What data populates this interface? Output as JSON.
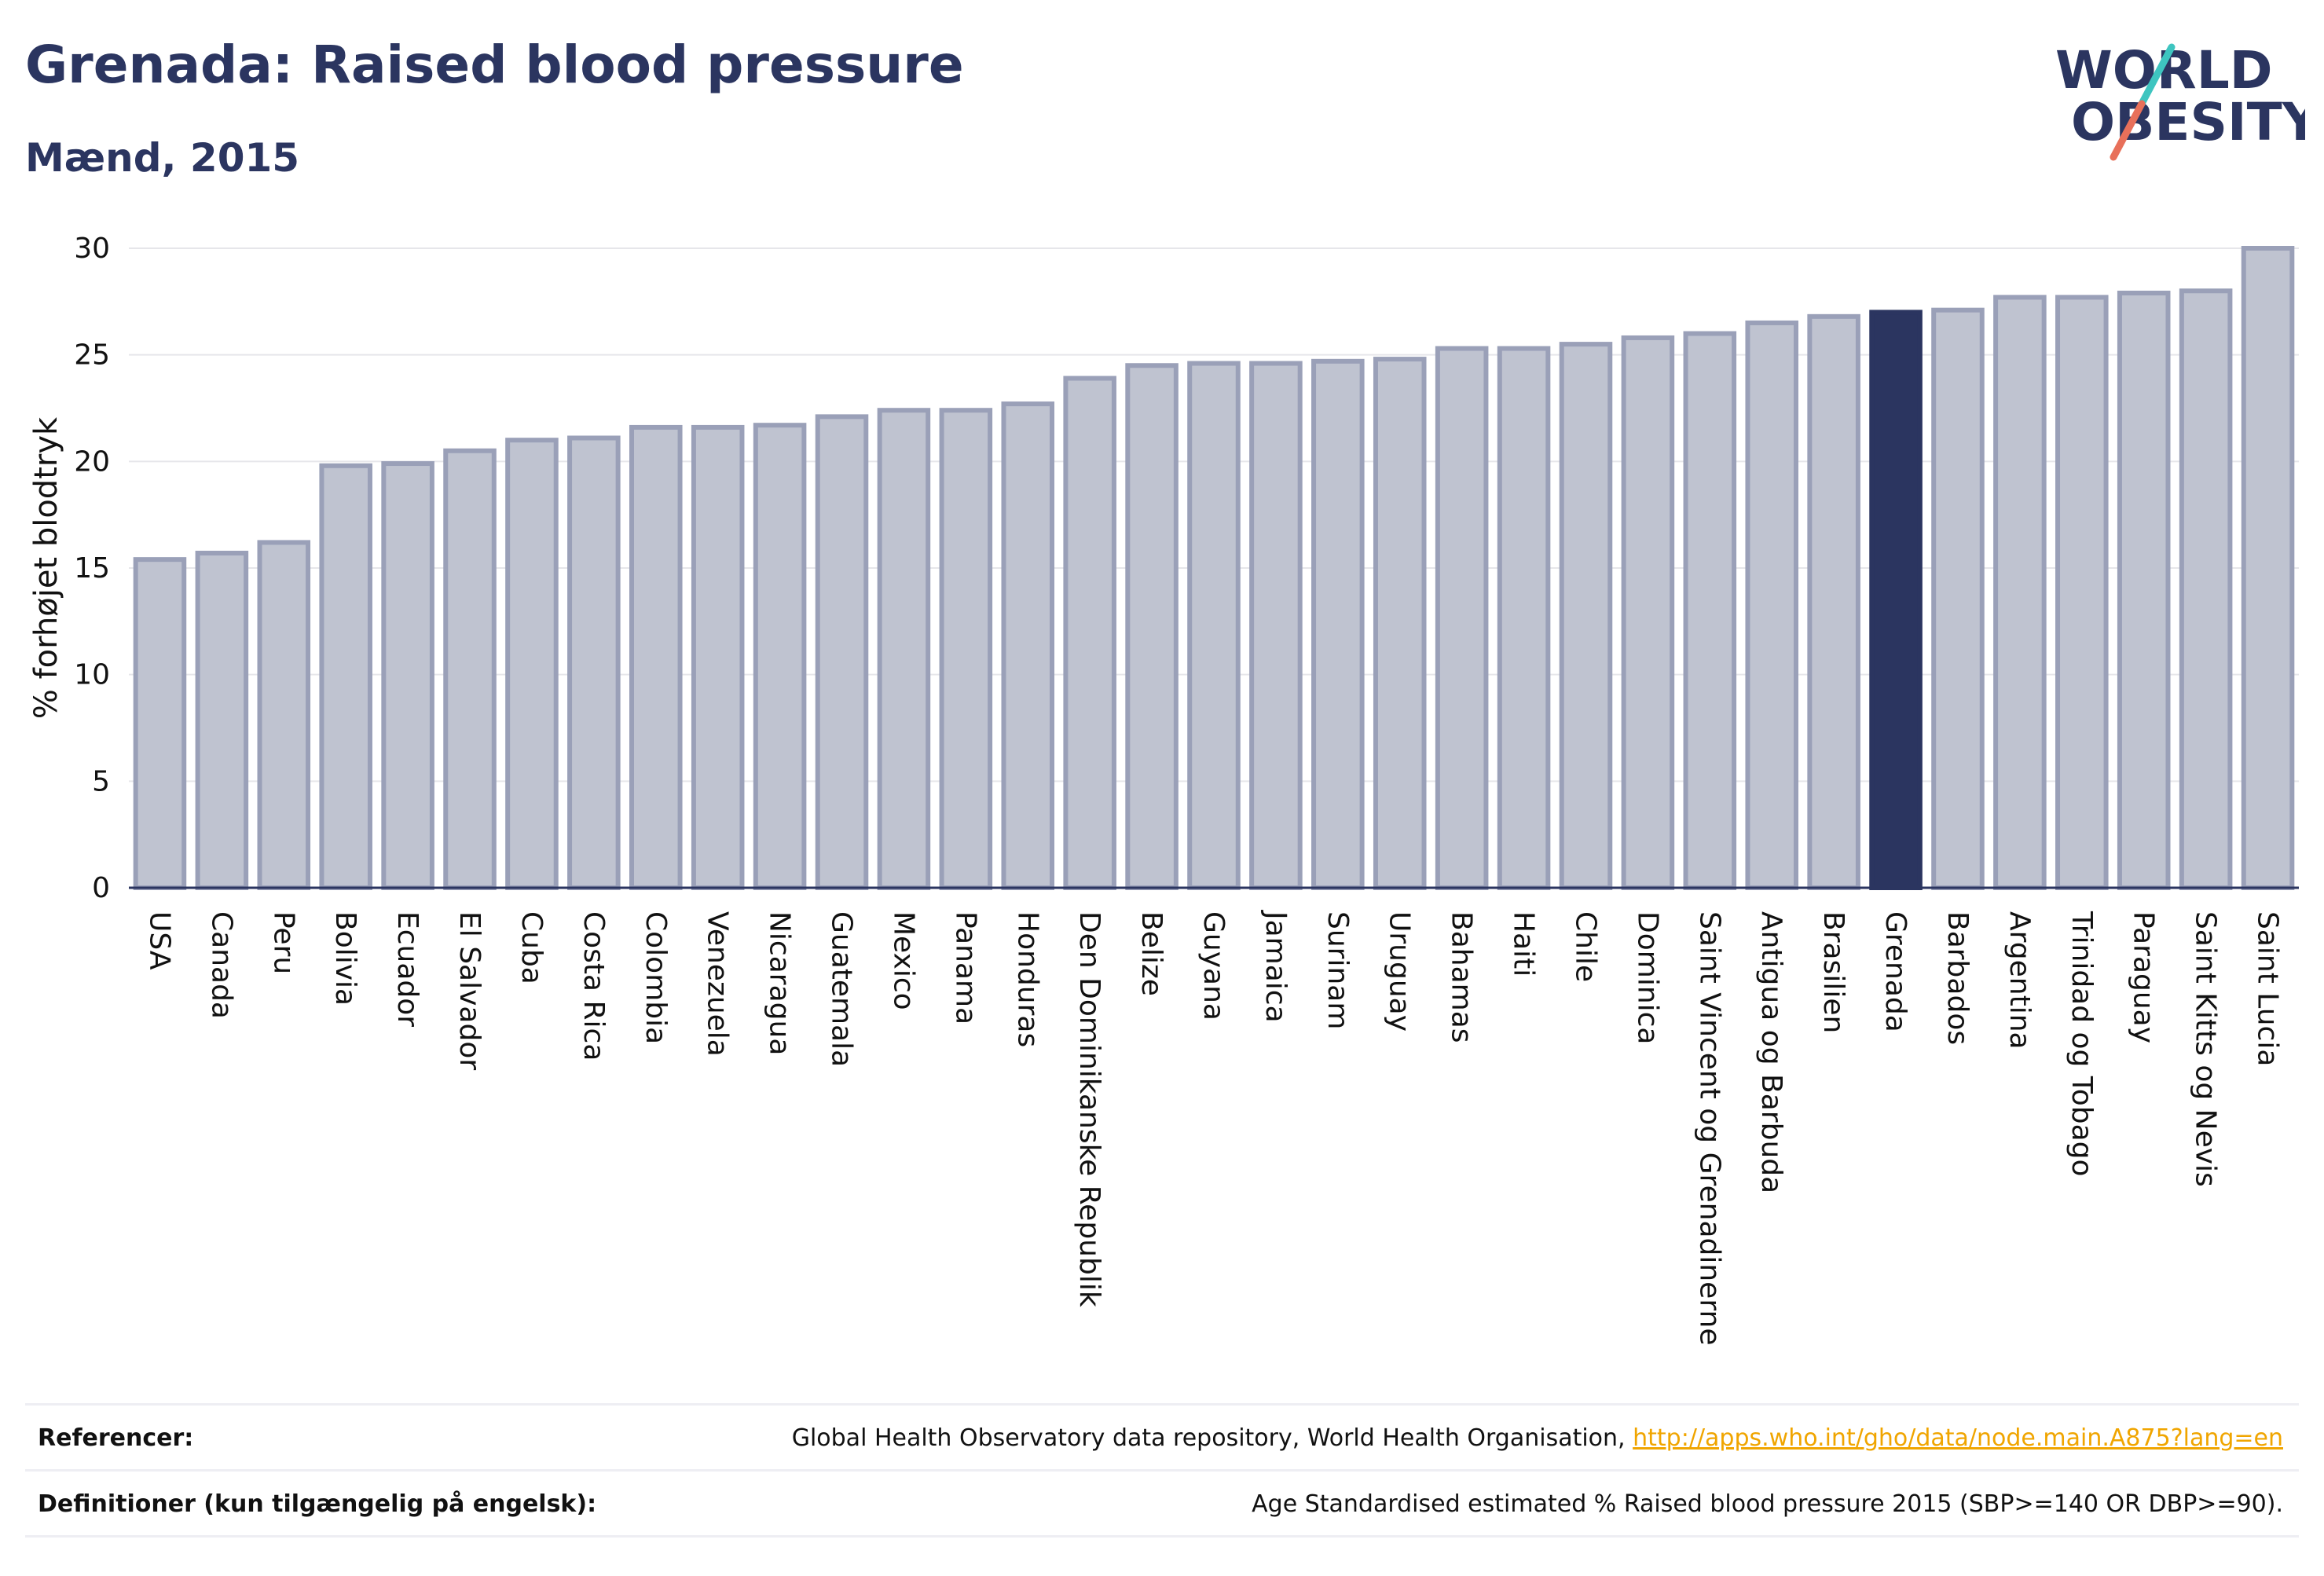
{
  "header": {
    "title": "Grenada: Raised blood pressure",
    "subtitle": "Mænd, 2015"
  },
  "logo": {
    "line1": "WORLD",
    "line2": "OBESITY"
  },
  "colors": {
    "bar": "#bfc3d0",
    "bar_stroke": "#9aa0b8",
    "highlight": "#2b3560",
    "grid": "#e6e6ea",
    "accent_teal": "#3ec5c0",
    "accent_coral": "#e8705a"
  },
  "chart_data": {
    "type": "bar",
    "title": "Grenada: Raised blood pressure",
    "subtitle": "Mænd, 2015",
    "ylabel": "% forhøjet blodtryk",
    "xlabel": "",
    "ylim": [
      0,
      30
    ],
    "yticks": [
      0,
      5,
      10,
      15,
      20,
      25,
      30
    ],
    "grid": true,
    "highlight": "Grenada",
    "categories": [
      "USA",
      "Canada",
      "Peru",
      "Bolivia",
      "Ecuador",
      "El Salvador",
      "Cuba",
      "Costa Rica",
      "Colombia",
      "Venezuela",
      "Nicaragua",
      "Guatemala",
      "Mexico",
      "Panama",
      "Honduras",
      "Den Dominikanske Republik",
      "Belize",
      "Guyana",
      "Jamaica",
      "Surinam",
      "Uruguay",
      "Bahamas",
      "Haiti",
      "Chile",
      "Dominica",
      "Saint Vincent og Grenadinerne",
      "Antigua og Barbuda",
      "Brasilien",
      "Grenada",
      "Barbados",
      "Argentina",
      "Trinidad og Tobago",
      "Paraguay",
      "Saint Kitts og Nevis",
      "Saint Lucia"
    ],
    "values": [
      15.4,
      15.7,
      16.2,
      19.8,
      19.9,
      20.5,
      21.0,
      21.1,
      21.6,
      21.6,
      21.7,
      22.1,
      22.4,
      22.4,
      22.7,
      23.9,
      24.5,
      24.6,
      24.6,
      24.7,
      24.8,
      25.3,
      25.3,
      25.5,
      25.8,
      26.0,
      26.5,
      26.8,
      27.0,
      27.1,
      27.7,
      27.7,
      27.9,
      28.0,
      30.0
    ]
  },
  "footer": {
    "references_label": "Referencer:",
    "references_text": "Global Health Observatory data repository, World Health Organisation,",
    "references_link": "http://apps.who.int/gho/data/node.main.A875?lang=en",
    "definitions_label": "Definitioner (kun tilgængelig på engelsk):",
    "definitions_text": "Age Standardised estimated % Raised blood pressure 2015 (SBP>=140 OR DBP>=90)."
  }
}
